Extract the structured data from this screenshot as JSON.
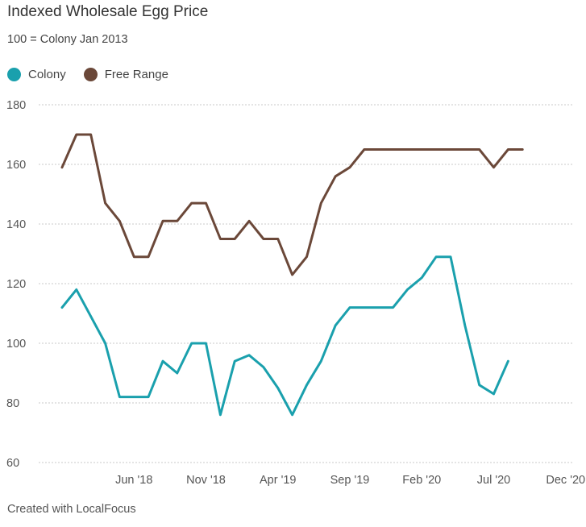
{
  "chart_data": {
    "type": "line",
    "title": "Indexed Wholesale Egg Price",
    "subtitle": "100 = Colony Jan 2013",
    "ylim": [
      60,
      180
    ],
    "yticks": [
      60,
      80,
      100,
      120,
      140,
      160,
      180
    ],
    "xlim": [
      "2017-12",
      "2020-12"
    ],
    "xticks": [
      {
        "value": "2018-06",
        "label": "Jun '18"
      },
      {
        "value": "2018-11",
        "label": "Nov '18"
      },
      {
        "value": "2019-04",
        "label": "Apr '19"
      },
      {
        "value": "2019-09",
        "label": "Sep '19"
      },
      {
        "value": "2020-02",
        "label": "Feb '20"
      },
      {
        "value": "2020-07",
        "label": "Jul '20"
      },
      {
        "value": "2020-12",
        "label": "Dec '20"
      }
    ],
    "grid": true,
    "legend_position": "top-left",
    "x": [
      "2018-01",
      "2018-02",
      "2018-03",
      "2018-04",
      "2018-05",
      "2018-06",
      "2018-07",
      "2018-08",
      "2018-09",
      "2018-10",
      "2018-11",
      "2018-12",
      "2019-01",
      "2019-02",
      "2019-03",
      "2019-04",
      "2019-05",
      "2019-06",
      "2019-07",
      "2019-08",
      "2019-09",
      "2019-10",
      "2019-11",
      "2019-12",
      "2020-01",
      "2020-02",
      "2020-03",
      "2020-04",
      "2020-05",
      "2020-06",
      "2020-07",
      "2020-08",
      "2020-09"
    ],
    "series": [
      {
        "name": "Colony",
        "color": "#1aa0ad",
        "values": [
          112,
          118,
          109,
          100,
          82,
          82,
          82,
          94,
          90,
          100,
          100,
          76,
          94,
          96,
          92,
          85,
          76,
          86,
          94,
          106,
          112,
          112,
          112,
          112,
          118,
          122,
          129,
          129,
          106,
          86,
          83,
          94,
          null
        ]
      },
      {
        "name": "Free Range",
        "color": "#6b4839",
        "values": [
          159,
          170,
          170,
          147,
          141,
          129,
          129,
          141,
          141,
          147,
          147,
          135,
          135,
          141,
          135,
          135,
          123,
          129,
          147,
          156,
          159,
          165,
          165,
          165,
          165,
          165,
          165,
          165,
          165,
          165,
          159,
          165,
          165
        ]
      }
    ]
  },
  "footer": {
    "credit": "Created with LocalFocus"
  }
}
